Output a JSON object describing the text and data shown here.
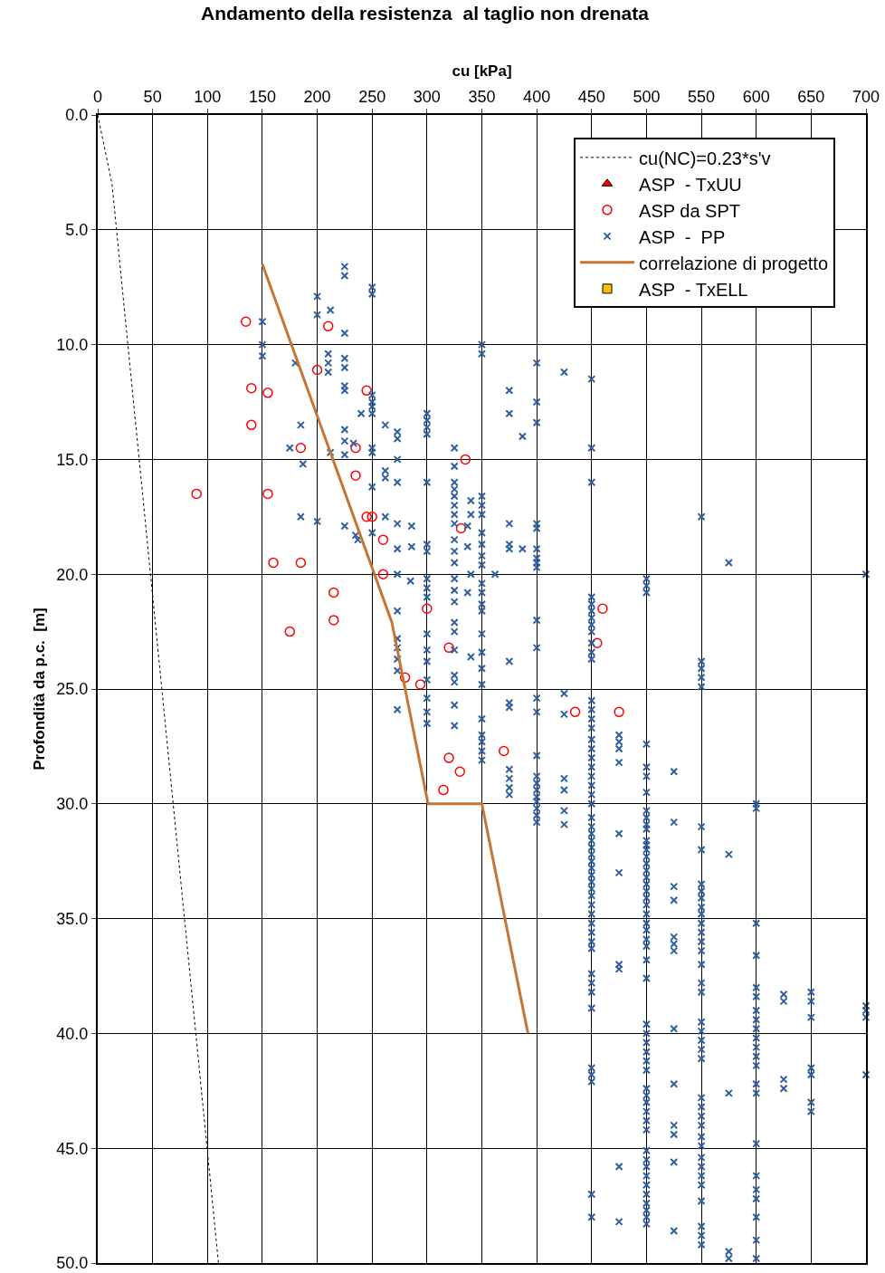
{
  "chart_data": {
    "type": "scatter",
    "title": "Andamento della resistenza  al taglio non drenata",
    "xlabel": "cu [kPa]",
    "ylabel": "Profondità da p.c.  [m]",
    "xlim": [
      0,
      700
    ],
    "xticks": [
      0,
      50,
      100,
      150,
      200,
      250,
      300,
      350,
      400,
      450,
      500,
      550,
      600,
      650,
      700
    ],
    "ylim": [
      50,
      0
    ],
    "yticks": [
      {
        "value": 0,
        "label": "0.0"
      },
      {
        "value": 5,
        "label": "5.0"
      },
      {
        "value": 10,
        "label": "10.0"
      },
      {
        "value": 15,
        "label": "15.0"
      },
      {
        "value": 20,
        "label": "20.0"
      },
      {
        "value": 25,
        "label": "25.0"
      },
      {
        "value": 30,
        "label": "30.0"
      },
      {
        "value": 35,
        "label": "35.0"
      },
      {
        "value": 40,
        "label": "40.0"
      },
      {
        "value": 45,
        "label": "45.0"
      },
      {
        "value": 50,
        "label": "50.0"
      }
    ],
    "grid": true,
    "legend": "top right",
    "series": [
      {
        "name": "cu(NC)=0.23*s'v",
        "type": "line",
        "marker": "none",
        "line_style": "dotted",
        "color": "#000000",
        "x": [
          0,
          13,
          110
        ],
        "values": [
          0,
          3,
          50
        ]
      },
      {
        "name": "ASP  - TxUU",
        "marker": "triangle",
        "color": "#ff0000"
      },
      {
        "name": "ASP da SPT",
        "marker": "circle",
        "color": "#ff0000",
        "x": [
          135,
          210,
          200,
          140,
          155,
          245,
          140,
          185,
          235,
          335,
          235,
          90,
          155,
          245,
          250,
          331,
          260,
          160,
          185,
          260,
          215,
          215,
          175,
          300,
          460,
          320,
          455,
          280,
          294,
          435,
          475,
          370,
          320,
          330,
          315
        ],
        "values": [
          9.0,
          9.2,
          11.1,
          11.9,
          12.1,
          12.0,
          13.5,
          14.5,
          14.5,
          15.0,
          15.7,
          16.5,
          16.5,
          17.5,
          17.5,
          18.0,
          18.5,
          19.5,
          19.5,
          20.0,
          20.8,
          22.0,
          22.5,
          21.5,
          21.5,
          23.2,
          23.0,
          24.5,
          24.8,
          26.0,
          26.0,
          27.7,
          28.0,
          28.6,
          29.4
        ]
      },
      {
        "name": "ASP  -  PP",
        "marker": "cross",
        "color": "#2e5f9e",
        "x": [
          150,
          150,
          150,
          180,
          185,
          175,
          187,
          185,
          200,
          200,
          212,
          200,
          210,
          210,
          210,
          225,
          225,
          225,
          225,
          225,
          225,
          225,
          225,
          225,
          225,
          225,
          250,
          250,
          250,
          250,
          250,
          250,
          250,
          250,
          250,
          250,
          240,
          233,
          237,
          235,
          212,
          262,
          262,
          262,
          262,
          273,
          273,
          273,
          273,
          273,
          273,
          273,
          273,
          273,
          273,
          273,
          273,
          273,
          286,
          286,
          285,
          300,
          300,
          300,
          300,
          300,
          300,
          300,
          300,
          300,
          300,
          300,
          300,
          300,
          300,
          300,
          300,
          300,
          325,
          325,
          325,
          325,
          325,
          325,
          325,
          325,
          325,
          325,
          325,
          325,
          325,
          325,
          325,
          325,
          325,
          325,
          325,
          325,
          325,
          337,
          337,
          337,
          340,
          340,
          340,
          340,
          350,
          350,
          350,
          350,
          350,
          350,
          350,
          350,
          350,
          350,
          350,
          350,
          350,
          350,
          350,
          350,
          350,
          350,
          350,
          350,
          350,
          350,
          362,
          375,
          375,
          375,
          375,
          375,
          375,
          375,
          375,
          375,
          375,
          375,
          375,
          387,
          387,
          400,
          400,
          400,
          400,
          400,
          400,
          400,
          400,
          400,
          400,
          400,
          400,
          400,
          400,
          400,
          400,
          400,
          400,
          400,
          400,
          400,
          400,
          425,
          425,
          425,
          425,
          425,
          425,
          425,
          450,
          450,
          450,
          450,
          450,
          450,
          450,
          450,
          450,
          450,
          450,
          450,
          450,
          450,
          450,
          450,
          450,
          450,
          450,
          450,
          450,
          450,
          450,
          450,
          450,
          450,
          450,
          450,
          450,
          450,
          450,
          450,
          450,
          450,
          450,
          450,
          450,
          450,
          450,
          450,
          450,
          450,
          450,
          450,
          450,
          450,
          450,
          450,
          450,
          450,
          450,
          475,
          475,
          475,
          475,
          475,
          475,
          475,
          475,
          475,
          475,
          500,
          500,
          500,
          500,
          500,
          500,
          500,
          500,
          500,
          500,
          500,
          500,
          500,
          500,
          500,
          500,
          500,
          500,
          500,
          500,
          500,
          500,
          500,
          500,
          500,
          500,
          500,
          500,
          500,
          500,
          500,
          500,
          500,
          500,
          500,
          500,
          500,
          500,
          500,
          500,
          500,
          500,
          500,
          500,
          500,
          500,
          500,
          500,
          500,
          500,
          500,
          525,
          525,
          525,
          525,
          525,
          525,
          525,
          525,
          525,
          525,
          525,
          525,
          525,
          550,
          550,
          550,
          550,
          550,
          550,
          550,
          550,
          550,
          550,
          550,
          550,
          550,
          550,
          550,
          550,
          550,
          550,
          550,
          550,
          550,
          550,
          550,
          550,
          550,
          550,
          550,
          550,
          550,
          550,
          550,
          550,
          550,
          550,
          550,
          550,
          550,
          550,
          575,
          575,
          575,
          575,
          575,
          600,
          600,
          600,
          600,
          600,
          600,
          600,
          600,
          600,
          600,
          600,
          600,
          600,
          600,
          600,
          600,
          600,
          600,
          600,
          600,
          600,
          600,
          625,
          625,
          625,
          625,
          650,
          650,
          650,
          650,
          650,
          650,
          650,
          700,
          700,
          700,
          700,
          700
        ],
        "values": [
          9.0,
          10.0,
          10.5,
          10.8,
          13.5,
          14.5,
          15.2,
          17.5,
          7.9,
          8.7,
          8.5,
          17.7,
          10.4,
          10.8,
          11.2,
          6.6,
          7.0,
          9.5,
          10.6,
          11.0,
          11.8,
          12.0,
          13.7,
          14.2,
          14.8,
          17.9,
          7.5,
          7.8,
          12.2,
          12.5,
          12.7,
          13.0,
          14.5,
          14.7,
          16.2,
          18.2,
          13.0,
          14.3,
          18.5,
          18.3,
          14.7,
          13.5,
          15.5,
          15.8,
          17.5,
          13.8,
          14.1,
          15.0,
          16.0,
          17.8,
          18.9,
          20.0,
          21.6,
          22.8,
          23.2,
          23.7,
          24.2,
          25.9,
          17.9,
          18.8,
          20.3,
          13.0,
          13.3,
          13.6,
          13.9,
          16.0,
          18.7,
          19.0,
          20.2,
          20.6,
          21.0,
          22.6,
          23.3,
          23.8,
          24.6,
          25.4,
          26.0,
          26.5,
          14.5,
          15.3,
          16.0,
          16.3,
          16.6,
          17.0,
          17.4,
          17.8,
          18.5,
          19.0,
          19.5,
          20.2,
          20.7,
          21.2,
          22.1,
          22.5,
          23.3,
          24.4,
          24.7,
          25.7,
          26.6,
          17.9,
          18.8,
          20.8,
          16.8,
          17.4,
          20.0,
          23.6,
          10.0,
          10.4,
          16.6,
          17.0,
          17.4,
          18.2,
          18.7,
          19.2,
          19.6,
          20.4,
          20.8,
          21.3,
          21.6,
          22.6,
          23.4,
          24.1,
          24.8,
          26.3,
          27.0,
          27.3,
          27.7,
          28.1,
          20.0,
          12.0,
          13.0,
          17.8,
          18.7,
          18.9,
          23.8,
          25.6,
          25.8,
          28.5,
          28.9,
          29.3,
          29.6,
          14.0,
          18.9,
          10.8,
          12.5,
          13.4,
          17.8,
          18.0,
          18.9,
          19.3,
          19.5,
          19.7,
          22.0,
          23.2,
          25.4,
          26.0,
          27.9,
          28.8,
          29.1,
          29.4,
          29.7,
          29.9,
          30.2,
          30.5,
          30.8,
          11.2,
          25.2,
          26.1,
          28.9,
          29.4,
          30.3,
          30.9,
          11.5,
          14.5,
          16.0,
          21.0,
          21.3,
          21.6,
          21.9,
          22.2,
          22.5,
          23.0,
          23.4,
          23.7,
          25.5,
          25.9,
          26.3,
          26.7,
          27.2,
          27.6,
          28.0,
          28.4,
          28.8,
          29.2,
          29.6,
          30.0,
          30.6,
          31.0,
          31.3,
          31.6,
          31.9,
          32.2,
          32.5,
          32.8,
          33.1,
          33.4,
          33.7,
          34.0,
          34.4,
          34.8,
          35.2,
          35.6,
          36.0,
          36.3,
          37.4,
          37.8,
          38.2,
          38.9,
          41.5,
          41.8,
          42.1,
          47.0,
          48.0,
          27.0,
          27.3,
          27.6,
          28.2,
          31.3,
          33.0,
          37.0,
          37.2,
          45.8,
          48.2,
          20.2,
          20.5,
          20.8,
          27.4,
          28.4,
          28.8,
          29.5,
          30.3,
          30.6,
          30.9,
          31.1,
          31.6,
          31.8,
          32.0,
          32.3,
          32.6,
          32.9,
          33.2,
          33.5,
          33.8,
          34.1,
          34.4,
          34.8,
          35.2,
          35.5,
          35.9,
          36.2,
          36.8,
          37.6,
          39.6,
          40.0,
          40.4,
          40.8,
          41.2,
          41.6,
          42.4,
          42.7,
          43.0,
          43.4,
          43.8,
          44.2,
          45.1,
          45.5,
          45.8,
          46.2,
          46.6,
          47.0,
          47.4,
          47.7,
          48.0,
          48.3,
          28.6,
          30.8,
          33.6,
          34.2,
          35.8,
          36.1,
          36.4,
          39.8,
          42.2,
          44.0,
          44.4,
          45.6,
          48.6,
          17.5,
          23.8,
          24.1,
          24.5,
          24.9,
          31.0,
          32.0,
          33.5,
          33.8,
          34.1,
          34.5,
          34.8,
          35.2,
          35.6,
          36.0,
          36.4,
          37.0,
          37.8,
          38.2,
          39.5,
          39.9,
          40.3,
          40.7,
          41.1,
          42.8,
          43.2,
          43.6,
          44.0,
          44.5,
          44.9,
          45.4,
          45.8,
          46.2,
          46.6,
          47.3,
          48.4,
          48.8,
          49.2,
          19.5,
          32.2,
          42.6,
          49.5,
          49.8,
          30.0,
          30.2,
          35.2,
          36.6,
          38.0,
          38.4,
          39.0,
          39.4,
          39.8,
          40.2,
          40.6,
          41.0,
          41.4,
          42.2,
          42.6,
          44.8,
          46.2,
          46.8,
          47.2,
          48.0,
          49.0,
          49.8,
          38.3,
          38.6,
          42.0,
          42.4,
          38.2,
          38.6,
          39.3,
          41.5,
          41.8,
          43.0,
          43.4,
          20.0,
          38.8,
          39.0,
          39.3,
          41.8
        ]
      },
      {
        "name": "correlazione di progetto",
        "type": "line",
        "marker": "none",
        "line_style": "solid",
        "color": "#c87533",
        "x": [
          150,
          268,
          301,
          350,
          392
        ],
        "values": [
          6.5,
          22.1,
          30,
          30,
          40
        ]
      },
      {
        "name": "ASP  - TxELL",
        "marker": "square",
        "color": "#ffc000"
      }
    ]
  }
}
